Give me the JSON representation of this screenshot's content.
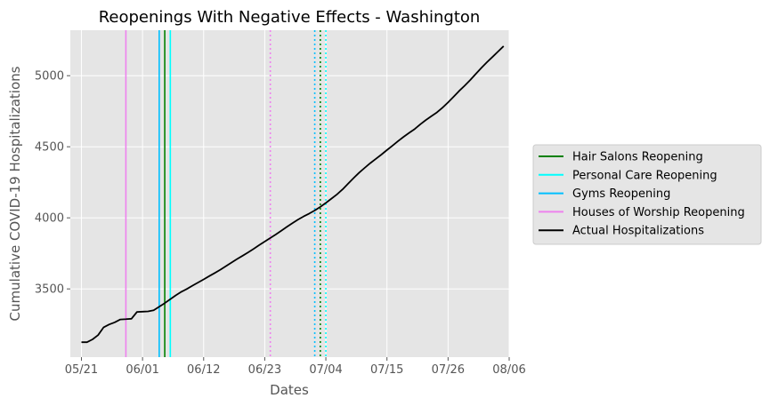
{
  "chart_data": {
    "type": "line",
    "title": "Reopenings With Negative Effects - Washington",
    "xlabel": "Dates",
    "ylabel": "Cumulative COVID-19 Hospitalizations",
    "x_ticks": [
      "05/21",
      "06/01",
      "06/12",
      "06/23",
      "07/04",
      "07/15",
      "07/26",
      "08/06"
    ],
    "x_range": [
      "2020-05-19",
      "2020-08-06"
    ],
    "y_ticks": [
      3500,
      4000,
      4500,
      5000
    ],
    "ylim": [
      3020,
      5320
    ],
    "grid": true,
    "legend_position": "outside-right",
    "series": [
      {
        "name": "Actual Hospitalizations",
        "color": "#000000",
        "points": [
          [
            "2020-05-21",
            3125
          ],
          [
            "2020-05-22",
            3125
          ],
          [
            "2020-05-23",
            3145
          ],
          [
            "2020-05-24",
            3175
          ],
          [
            "2020-05-25",
            3230
          ],
          [
            "2020-05-26",
            3250
          ],
          [
            "2020-05-27",
            3265
          ],
          [
            "2020-05-28",
            3285
          ],
          [
            "2020-05-29",
            3287
          ],
          [
            "2020-05-30",
            3290
          ],
          [
            "2020-05-31",
            3338
          ],
          [
            "2020-06-01",
            3340
          ],
          [
            "2020-06-02",
            3342
          ],
          [
            "2020-06-03",
            3350
          ],
          [
            "2020-06-04",
            3375
          ],
          [
            "2020-06-05",
            3400
          ],
          [
            "2020-06-06",
            3428
          ],
          [
            "2020-06-07",
            3455
          ],
          [
            "2020-06-08",
            3480
          ],
          [
            "2020-06-09",
            3500
          ],
          [
            "2020-06-10",
            3523
          ],
          [
            "2020-06-11",
            3545
          ],
          [
            "2020-06-12",
            3567
          ],
          [
            "2020-06-13",
            3590
          ],
          [
            "2020-06-14",
            3612
          ],
          [
            "2020-06-15",
            3635
          ],
          [
            "2020-06-16",
            3660
          ],
          [
            "2020-06-17",
            3685
          ],
          [
            "2020-06-18",
            3710
          ],
          [
            "2020-06-19",
            3733
          ],
          [
            "2020-06-20",
            3757
          ],
          [
            "2020-06-21",
            3782
          ],
          [
            "2020-06-22",
            3808
          ],
          [
            "2020-06-23",
            3833
          ],
          [
            "2020-06-24",
            3858
          ],
          [
            "2020-06-25",
            3883
          ],
          [
            "2020-06-26",
            3910
          ],
          [
            "2020-06-27",
            3937
          ],
          [
            "2020-06-28",
            3963
          ],
          [
            "2020-06-29",
            3988
          ],
          [
            "2020-06-30",
            4010
          ],
          [
            "2020-07-01",
            4030
          ],
          [
            "2020-07-02",
            4052
          ],
          [
            "2020-07-03",
            4077
          ],
          [
            "2020-07-04",
            4105
          ],
          [
            "2020-07-05",
            4135
          ],
          [
            "2020-07-06",
            4165
          ],
          [
            "2020-07-07",
            4200
          ],
          [
            "2020-07-08",
            4240
          ],
          [
            "2020-07-09",
            4280
          ],
          [
            "2020-07-10",
            4318
          ],
          [
            "2020-07-11",
            4352
          ],
          [
            "2020-07-12",
            4385
          ],
          [
            "2020-07-13",
            4415
          ],
          [
            "2020-07-14",
            4445
          ],
          [
            "2020-07-15",
            4477
          ],
          [
            "2020-07-16",
            4508
          ],
          [
            "2020-07-17",
            4540
          ],
          [
            "2020-07-18",
            4570
          ],
          [
            "2020-07-19",
            4598
          ],
          [
            "2020-07-20",
            4625
          ],
          [
            "2020-07-21",
            4658
          ],
          [
            "2020-07-22",
            4688
          ],
          [
            "2020-07-23",
            4715
          ],
          [
            "2020-07-24",
            4742
          ],
          [
            "2020-07-25",
            4775
          ],
          [
            "2020-07-26",
            4812
          ],
          [
            "2020-07-27",
            4852
          ],
          [
            "2020-07-28",
            4893
          ],
          [
            "2020-07-29",
            4930
          ],
          [
            "2020-07-30",
            4970
          ],
          [
            "2020-07-31",
            5013
          ],
          [
            "2020-08-01",
            5055
          ],
          [
            "2020-08-02",
            5095
          ],
          [
            "2020-08-03",
            5132
          ],
          [
            "2020-08-04",
            5170
          ],
          [
            "2020-08-05",
            5208
          ]
        ]
      }
    ],
    "reopening_lines": [
      {
        "name": "Hair Salons Reopening",
        "color": "#008000",
        "style": "solid",
        "date": "2020-06-05"
      },
      {
        "name": "Personal Care Reopening",
        "color": "#00ffff",
        "style": "solid",
        "date": "2020-06-06"
      },
      {
        "name": "Gyms Reopening",
        "color": "#00bfff",
        "style": "solid",
        "date": "2020-06-04"
      },
      {
        "name": "Houses of Worship Reopening",
        "color": "#ee82ee",
        "style": "solid",
        "date": "2020-05-29"
      },
      {
        "name": "Houses of Worship Reopening",
        "color": "#ee82ee",
        "style": "dotted",
        "date": "2020-06-24"
      },
      {
        "name": "Gyms Reopening",
        "color": "#00bfff",
        "style": "dotted",
        "date": "2020-07-02"
      },
      {
        "name": "Hair Salons Reopening",
        "color": "#008000",
        "style": "dotted",
        "date": "2020-07-03"
      },
      {
        "name": "Personal Care Reopening",
        "color": "#00ffff",
        "style": "dotted",
        "date": "2020-07-04"
      }
    ],
    "legend": [
      {
        "label": "Hair Salons Reopening",
        "color": "#008000"
      },
      {
        "label": "Personal Care Reopening",
        "color": "#00ffff"
      },
      {
        "label": "Gyms Reopening",
        "color": "#00bfff"
      },
      {
        "label": "Houses of Worship Reopening",
        "color": "#ee82ee"
      },
      {
        "label": "Actual Hospitalizations",
        "color": "#000000"
      }
    ]
  }
}
